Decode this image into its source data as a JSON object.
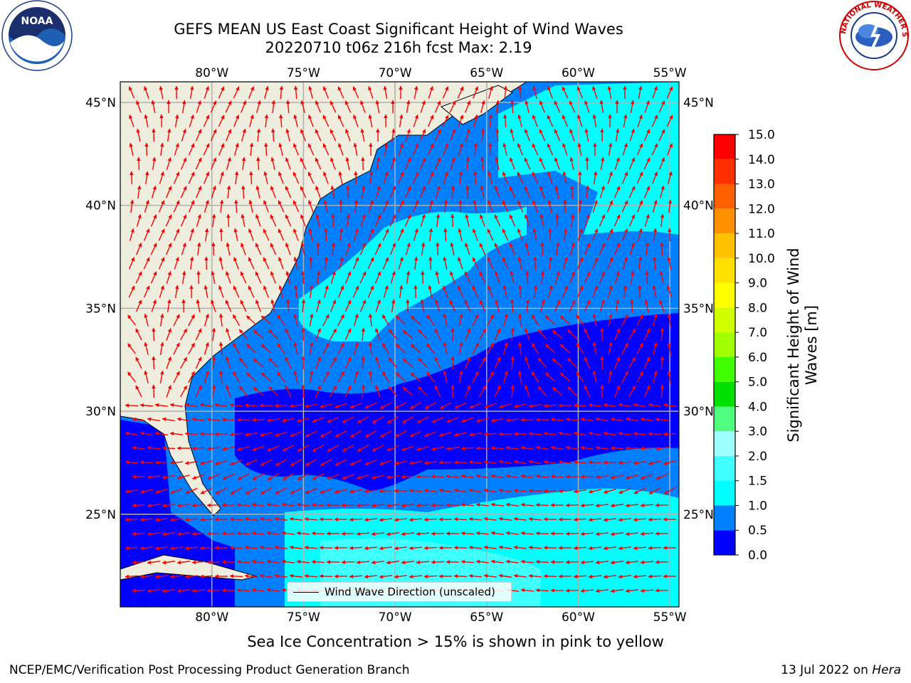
{
  "title": {
    "line1": "GEFS MEAN US East Coast Significant Height of Wind Waves",
    "line2": "20220710 t06z 216h fcst   Max: 2.19"
  },
  "map": {
    "lon_ticks": [
      "80°W",
      "75°W",
      "70°W",
      "65°W",
      "60°W",
      "55°W"
    ],
    "lat_ticks": [
      "45°N",
      "40°N",
      "35°N",
      "30°N",
      "25°N"
    ],
    "lon_values": [
      -80,
      -75,
      -70,
      -65,
      -60,
      -55
    ],
    "lat_values": [
      45,
      40,
      35,
      30,
      25
    ],
    "lon_range": [
      -85,
      -54.5
    ],
    "lat_range": [
      20.5,
      46
    ],
    "legend_label": "Wind Wave Direction (unscaled)",
    "arrow_color": "#ff0000",
    "land_color": "#efedde",
    "grid_color": "#b0b0b0"
  },
  "colorbar": {
    "label": "Significant Height of Wind Waves [m]",
    "ticks": [
      "0.0",
      "0.5",
      "1.0",
      "1.5",
      "2.0",
      "3.0",
      "4.0",
      "5.0",
      "6.0",
      "7.0",
      "8.0",
      "9.0",
      "10.0",
      "11.0",
      "12.0",
      "13.0",
      "14.0",
      "15.0"
    ],
    "colors": [
      "#0000ff",
      "#0080ff",
      "#00ffff",
      "#40ffff",
      "#a0ffff",
      "#50ff80",
      "#00e000",
      "#40ff00",
      "#a0ff00",
      "#d0ff00",
      "#ffff00",
      "#ffe000",
      "#ffc000",
      "#ff9000",
      "#ff6000",
      "#ff3000",
      "#ff0000"
    ]
  },
  "logos": {
    "left": "NOAA",
    "right_text": "NATIONAL WEATHER SERVICE"
  },
  "subtitle": "Sea Ice Concentration > 15% is shown in pink to yellow",
  "credit_left": "NCEP/EMC/Verification Post Processing Product Generation Branch",
  "credit_date": "13 Jul 2022 on",
  "credit_host": "Hera"
}
